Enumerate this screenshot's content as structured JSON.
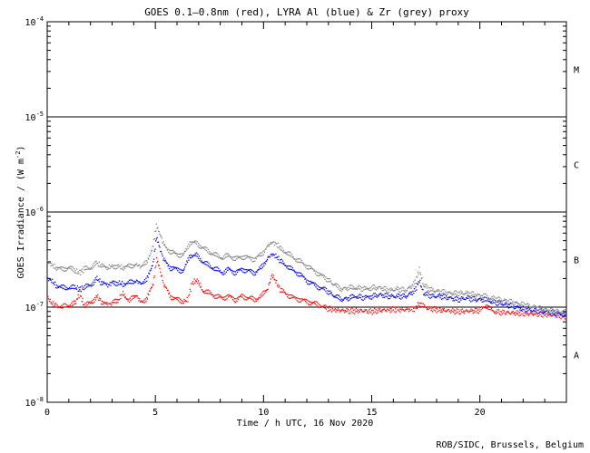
{
  "chart_data": {
    "type": "scatter",
    "title": "GOES 0.1—0.8nm (red), LYRA Al (blue) & Zr (grey) proxy",
    "xlabel": "Time / h UTC, 16 Nov 2020",
    "ylabel_main": "GOES Irradiance / (W m",
    "ylabel_sup": "-2",
    "ylabel_close": ")",
    "credit": "ROB/SIDC, Brussels, Belgium",
    "xlim": [
      0,
      24
    ],
    "ylim": [
      1e-08,
      0.0001
    ],
    "yscale": "log",
    "x_ticks": [
      {
        "value": 0,
        "label": "0"
      },
      {
        "value": 5,
        "label": "5"
      },
      {
        "value": 10,
        "label": "10"
      },
      {
        "value": 15,
        "label": "15"
      },
      {
        "value": 20,
        "label": "20"
      }
    ],
    "y_ticks": [
      {
        "value": 1e-08,
        "base": "10",
        "exp": "-8"
      },
      {
        "value": 1e-07,
        "base": "10",
        "exp": "-7"
      },
      {
        "value": 1e-06,
        "base": "10",
        "exp": "-6"
      },
      {
        "value": 1e-05,
        "base": "10",
        "exp": "-5"
      },
      {
        "value": 0.0001,
        "base": "10",
        "exp": "-4"
      }
    ],
    "class_lines": [
      1e-07,
      1e-06,
      1e-05
    ],
    "flare_classes": [
      {
        "label": "A",
        "value": 3.16e-08
      },
      {
        "label": "B",
        "value": 3.16e-07
      },
      {
        "label": "C",
        "value": 3.16e-06
      },
      {
        "label": "M",
        "value": 3.16e-05
      }
    ],
    "series": [
      {
        "name": "GOES 0.1—0.8nm",
        "color": "#ff0000",
        "points": [
          [
            0.0,
            1.3e-07
          ],
          [
            0.2,
            1.1e-07
          ],
          [
            0.4,
            1.05e-07
          ],
          [
            0.7,
            1e-07
          ],
          [
            1.0,
            1.05e-07
          ],
          [
            1.3,
            1.1e-07
          ],
          [
            1.5,
            1.4e-07
          ],
          [
            1.7,
            1.05e-07
          ],
          [
            2.0,
            1.1e-07
          ],
          [
            2.3,
            1.3e-07
          ],
          [
            2.5,
            1.15e-07
          ],
          [
            2.8,
            1.05e-07
          ],
          [
            3.0,
            1.1e-07
          ],
          [
            3.3,
            1.2e-07
          ],
          [
            3.5,
            1.4e-07
          ],
          [
            3.8,
            1.15e-07
          ],
          [
            4.1,
            1.35e-07
          ],
          [
            4.3,
            1.15e-07
          ],
          [
            4.6,
            1.2e-07
          ],
          [
            4.9,
            1.8e-07
          ],
          [
            5.05,
            3.2e-07
          ],
          [
            5.2,
            2.5e-07
          ],
          [
            5.4,
            1.7e-07
          ],
          [
            5.7,
            1.3e-07
          ],
          [
            6.0,
            1.2e-07
          ],
          [
            6.3,
            1.15e-07
          ],
          [
            6.5,
            1.2e-07
          ],
          [
            6.7,
            1.8e-07
          ],
          [
            6.9,
            1.9e-07
          ],
          [
            7.2,
            1.5e-07
          ],
          [
            7.5,
            1.4e-07
          ],
          [
            7.8,
            1.3e-07
          ],
          [
            8.1,
            1.25e-07
          ],
          [
            8.4,
            1.3e-07
          ],
          [
            8.7,
            1.2e-07
          ],
          [
            9.0,
            1.3e-07
          ],
          [
            9.3,
            1.25e-07
          ],
          [
            9.6,
            1.2e-07
          ],
          [
            9.9,
            1.3e-07
          ],
          [
            10.2,
            1.6e-07
          ],
          [
            10.4,
            2.2e-07
          ],
          [
            10.6,
            1.8e-07
          ],
          [
            10.8,
            1.5e-07
          ],
          [
            11.1,
            1.35e-07
          ],
          [
            11.4,
            1.25e-07
          ],
          [
            11.7,
            1.2e-07
          ],
          [
            12.0,
            1.15e-07
          ],
          [
            12.3,
            1.1e-07
          ],
          [
            12.6,
            1.05e-07
          ],
          [
            12.9,
            9.7e-08
          ],
          [
            13.5,
            9.3e-08
          ],
          [
            14.0,
            9.1e-08
          ],
          [
            14.5,
            9.2e-08
          ],
          [
            15.0,
            9e-08
          ],
          [
            15.5,
            9.3e-08
          ],
          [
            16.0,
            9.5e-08
          ],
          [
            16.5,
            9.4e-08
          ],
          [
            17.0,
            9.6e-08
          ],
          [
            17.2,
            1.1e-07
          ],
          [
            17.5,
            9.8e-08
          ],
          [
            18.0,
            9.4e-08
          ],
          [
            18.5,
            9.2e-08
          ],
          [
            19.0,
            9e-08
          ],
          [
            19.5,
            9.1e-08
          ],
          [
            20.0,
            9.2e-08
          ],
          [
            20.3,
            1.05e-07
          ],
          [
            20.6,
            9e-08
          ],
          [
            21.0,
            8.8e-08
          ],
          [
            21.5,
            8.7e-08
          ],
          [
            22.0,
            8.6e-08
          ],
          [
            22.5,
            8.5e-08
          ],
          [
            23.0,
            8.4e-08
          ],
          [
            23.5,
            8.2e-08
          ],
          [
            24.0,
            8e-08
          ]
        ]
      },
      {
        "name": "LYRA Al proxy",
        "color": "#0000ff",
        "points": [
          [
            0.0,
            2e-07
          ],
          [
            0.2,
            1.9e-07
          ],
          [
            0.4,
            1.7e-07
          ],
          [
            0.7,
            1.6e-07
          ],
          [
            1.0,
            1.6e-07
          ],
          [
            1.3,
            1.6e-07
          ],
          [
            1.5,
            1.55e-07
          ],
          [
            1.7,
            1.6e-07
          ],
          [
            2.0,
            1.7e-07
          ],
          [
            2.3,
            2e-07
          ],
          [
            2.5,
            1.8e-07
          ],
          [
            2.8,
            1.7e-07
          ],
          [
            3.0,
            1.8e-07
          ],
          [
            3.3,
            1.8e-07
          ],
          [
            3.5,
            1.75e-07
          ],
          [
            3.8,
            1.8e-07
          ],
          [
            4.1,
            1.9e-07
          ],
          [
            4.3,
            1.8e-07
          ],
          [
            4.6,
            1.9e-07
          ],
          [
            4.9,
            3e-07
          ],
          [
            5.05,
            5.3e-07
          ],
          [
            5.2,
            4.2e-07
          ],
          [
            5.4,
            3.1e-07
          ],
          [
            5.7,
            2.6e-07
          ],
          [
            6.0,
            2.5e-07
          ],
          [
            6.3,
            2.4e-07
          ],
          [
            6.6,
            3.5e-07
          ],
          [
            6.9,
            3.5e-07
          ],
          [
            7.2,
            3e-07
          ],
          [
            7.5,
            2.7e-07
          ],
          [
            7.8,
            2.5e-07
          ],
          [
            8.1,
            2.3e-07
          ],
          [
            8.4,
            2.5e-07
          ],
          [
            8.7,
            2.3e-07
          ],
          [
            9.0,
            2.5e-07
          ],
          [
            9.3,
            2.4e-07
          ],
          [
            9.6,
            2.3e-07
          ],
          [
            9.9,
            2.6e-07
          ],
          [
            10.2,
            3.3e-07
          ],
          [
            10.4,
            3.6e-07
          ],
          [
            10.6,
            3.4e-07
          ],
          [
            10.8,
            3e-07
          ],
          [
            11.1,
            2.7e-07
          ],
          [
            11.4,
            2.4e-07
          ],
          [
            11.7,
            2.2e-07
          ],
          [
            12.0,
            1.9e-07
          ],
          [
            12.3,
            1.75e-07
          ],
          [
            12.6,
            1.6e-07
          ],
          [
            12.9,
            1.5e-07
          ],
          [
            13.3,
            1.3e-07
          ],
          [
            13.6,
            1.2e-07
          ],
          [
            14.0,
            1.25e-07
          ],
          [
            14.3,
            1.3e-07
          ],
          [
            14.7,
            1.25e-07
          ],
          [
            15.0,
            1.3e-07
          ],
          [
            15.4,
            1.35e-07
          ],
          [
            15.8,
            1.3e-07
          ],
          [
            16.2,
            1.3e-07
          ],
          [
            16.6,
            1.3e-07
          ],
          [
            17.0,
            1.5e-07
          ],
          [
            17.2,
            1.9e-07
          ],
          [
            17.4,
            1.4e-07
          ],
          [
            17.8,
            1.3e-07
          ],
          [
            18.2,
            1.3e-07
          ],
          [
            18.6,
            1.25e-07
          ],
          [
            19.0,
            1.2e-07
          ],
          [
            19.4,
            1.25e-07
          ],
          [
            19.8,
            1.2e-07
          ],
          [
            20.2,
            1.2e-07
          ],
          [
            20.5,
            1.15e-07
          ],
          [
            20.9,
            1.1e-07
          ],
          [
            21.3,
            1.05e-07
          ],
          [
            21.7,
            1e-07
          ],
          [
            22.1,
            9.5e-08
          ],
          [
            22.5,
            9.2e-08
          ],
          [
            22.9,
            9e-08
          ],
          [
            23.3,
            8.8e-08
          ],
          [
            23.7,
            8.5e-08
          ],
          [
            24.0,
            8.6e-08
          ]
        ]
      },
      {
        "name": "LYRA Zr proxy",
        "color": "#808080",
        "points": [
          [
            0.0,
            3e-07
          ],
          [
            0.2,
            2.8e-07
          ],
          [
            0.4,
            2.6e-07
          ],
          [
            0.7,
            2.5e-07
          ],
          [
            1.0,
            2.6e-07
          ],
          [
            1.3,
            2.4e-07
          ],
          [
            1.5,
            2.3e-07
          ],
          [
            1.7,
            2.5e-07
          ],
          [
            2.0,
            2.6e-07
          ],
          [
            2.3,
            2.9e-07
          ],
          [
            2.5,
            2.7e-07
          ],
          [
            2.8,
            2.6e-07
          ],
          [
            3.0,
            2.7e-07
          ],
          [
            3.3,
            2.7e-07
          ],
          [
            3.5,
            2.6e-07
          ],
          [
            3.8,
            2.7e-07
          ],
          [
            4.1,
            2.8e-07
          ],
          [
            4.3,
            2.7e-07
          ],
          [
            4.6,
            2.9e-07
          ],
          [
            4.9,
            4.5e-07
          ],
          [
            5.05,
            7e-07
          ],
          [
            5.2,
            6e-07
          ],
          [
            5.4,
            4.5e-07
          ],
          [
            5.7,
            3.8e-07
          ],
          [
            6.0,
            3.6e-07
          ],
          [
            6.3,
            3.5e-07
          ],
          [
            6.6,
            4.8e-07
          ],
          [
            6.9,
            4.7e-07
          ],
          [
            7.2,
            4.2e-07
          ],
          [
            7.5,
            3.8e-07
          ],
          [
            7.8,
            3.5e-07
          ],
          [
            8.1,
            3.3e-07
          ],
          [
            8.4,
            3.5e-07
          ],
          [
            8.7,
            3.2e-07
          ],
          [
            9.0,
            3.4e-07
          ],
          [
            9.3,
            3.3e-07
          ],
          [
            9.6,
            3.2e-07
          ],
          [
            9.9,
            3.6e-07
          ],
          [
            10.2,
            4.4e-07
          ],
          [
            10.4,
            4.8e-07
          ],
          [
            10.6,
            4.6e-07
          ],
          [
            10.8,
            4.1e-07
          ],
          [
            11.1,
            3.7e-07
          ],
          [
            11.4,
            3.3e-07
          ],
          [
            11.7,
            3e-07
          ],
          [
            12.0,
            2.7e-07
          ],
          [
            12.3,
            2.45e-07
          ],
          [
            12.6,
            2.2e-07
          ],
          [
            12.9,
            2e-07
          ],
          [
            13.3,
            1.7e-07
          ],
          [
            13.6,
            1.55e-07
          ],
          [
            14.0,
            1.6e-07
          ],
          [
            14.3,
            1.6e-07
          ],
          [
            14.7,
            1.55e-07
          ],
          [
            15.0,
            1.6e-07
          ],
          [
            15.4,
            1.6e-07
          ],
          [
            15.8,
            1.5e-07
          ],
          [
            16.2,
            1.55e-07
          ],
          [
            16.6,
            1.5e-07
          ],
          [
            17.0,
            1.8e-07
          ],
          [
            17.2,
            2.5e-07
          ],
          [
            17.4,
            1.7e-07
          ],
          [
            17.8,
            1.5e-07
          ],
          [
            18.2,
            1.45e-07
          ],
          [
            18.6,
            1.4e-07
          ],
          [
            19.0,
            1.4e-07
          ],
          [
            19.4,
            1.4e-07
          ],
          [
            19.8,
            1.35e-07
          ],
          [
            20.2,
            1.3e-07
          ],
          [
            20.5,
            1.25e-07
          ],
          [
            20.9,
            1.2e-07
          ],
          [
            21.3,
            1.15e-07
          ],
          [
            21.7,
            1.1e-07
          ],
          [
            22.1,
            1.05e-07
          ],
          [
            22.5,
            1e-07
          ],
          [
            22.9,
            9.5e-08
          ],
          [
            23.3,
            9.2e-08
          ],
          [
            23.7,
            9e-08
          ],
          [
            24.0,
            8.8e-08
          ]
        ]
      }
    ]
  }
}
